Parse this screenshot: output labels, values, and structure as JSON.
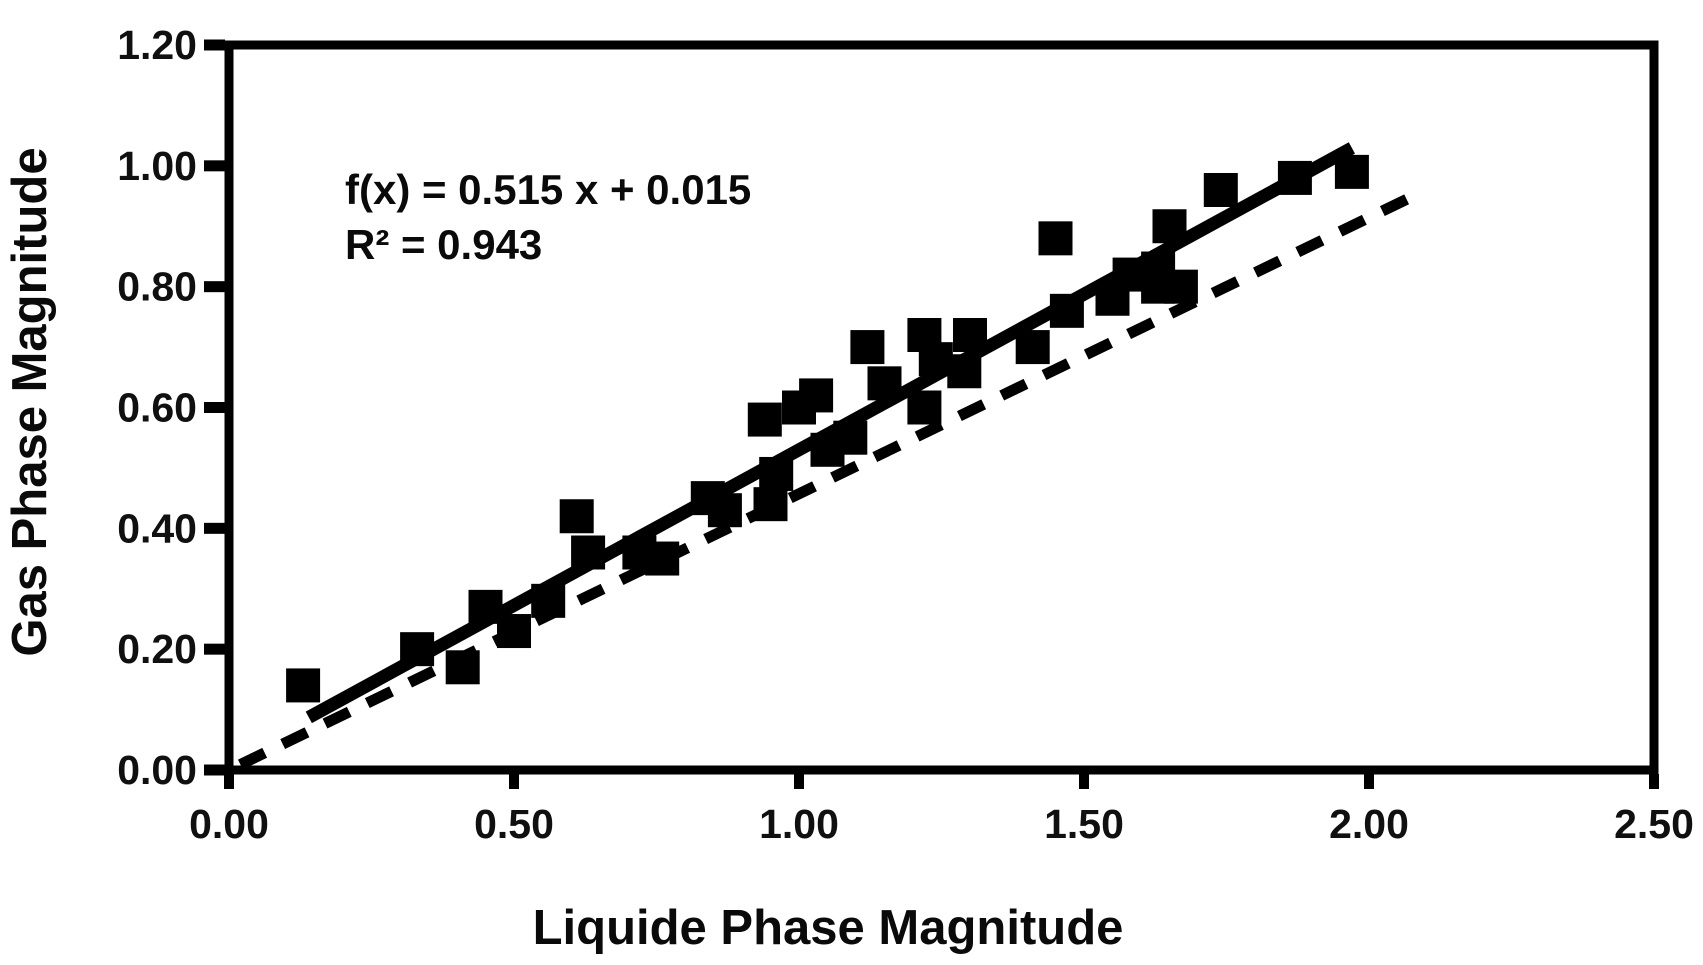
{
  "chart_data": {
    "type": "scatter",
    "title": "",
    "xlabel": "Liquide Phase Magnitude",
    "ylabel": "Gas Phase Magnitude",
    "xlim": [
      0,
      2.5
    ],
    "ylim": [
      0,
      1.2
    ],
    "x_tick_values": [
      0.0,
      0.5,
      1.0,
      1.5,
      2.0,
      2.5
    ],
    "x_tick_labels": [
      "0.00",
      "0.50",
      "1.00",
      "1.50",
      "2.00",
      "2.50"
    ],
    "y_tick_values": [
      0.0,
      0.2,
      0.4,
      0.6,
      0.8,
      1.0,
      1.2
    ],
    "y_tick_labels": [
      "0.00",
      "0.20",
      "0.40",
      "0.60",
      "0.80",
      "1.00",
      "1.20"
    ],
    "grid": false,
    "legend": false,
    "marker": "square",
    "colors": {
      "foreground": "#000000",
      "background": "#ffffff"
    },
    "annotation": {
      "line1": "f(x) = 0.515 x + 0.015",
      "line2": "R² = 0.943"
    },
    "regression": {
      "slope": 0.515,
      "intercept": 0.015,
      "r_squared": 0.943,
      "x_start": 0.14,
      "x_end": 1.97,
      "style": "solid"
    },
    "reference_line": {
      "style": "dashed",
      "points": [
        [
          0.02,
          0.009
        ],
        [
          2.08,
          0.951
        ]
      ]
    },
    "points": [
      [
        0.13,
        0.14
      ],
      [
        0.33,
        0.2
      ],
      [
        0.41,
        0.17
      ],
      [
        0.45,
        0.27
      ],
      [
        0.5,
        0.23
      ],
      [
        0.56,
        0.28
      ],
      [
        0.61,
        0.42
      ],
      [
        0.63,
        0.36
      ],
      [
        0.72,
        0.36
      ],
      [
        0.76,
        0.35
      ],
      [
        0.84,
        0.45
      ],
      [
        0.87,
        0.43
      ],
      [
        0.94,
        0.58
      ],
      [
        0.95,
        0.44
      ],
      [
        0.96,
        0.49
      ],
      [
        1.0,
        0.6
      ],
      [
        1.03,
        0.62
      ],
      [
        1.05,
        0.53
      ],
      [
        1.09,
        0.55
      ],
      [
        1.12,
        0.7
      ],
      [
        1.15,
        0.64
      ],
      [
        1.22,
        0.6
      ],
      [
        1.22,
        0.72
      ],
      [
        1.24,
        0.68
      ],
      [
        1.29,
        0.66
      ],
      [
        1.3,
        0.72
      ],
      [
        1.41,
        0.7
      ],
      [
        1.45,
        0.88
      ],
      [
        1.47,
        0.76
      ],
      [
        1.55,
        0.78
      ],
      [
        1.58,
        0.82
      ],
      [
        1.63,
        0.8
      ],
      [
        1.63,
        0.83
      ],
      [
        1.65,
        0.9
      ],
      [
        1.67,
        0.8
      ],
      [
        1.74,
        0.96
      ],
      [
        1.87,
        0.98
      ],
      [
        1.97,
        0.99
      ]
    ]
  }
}
